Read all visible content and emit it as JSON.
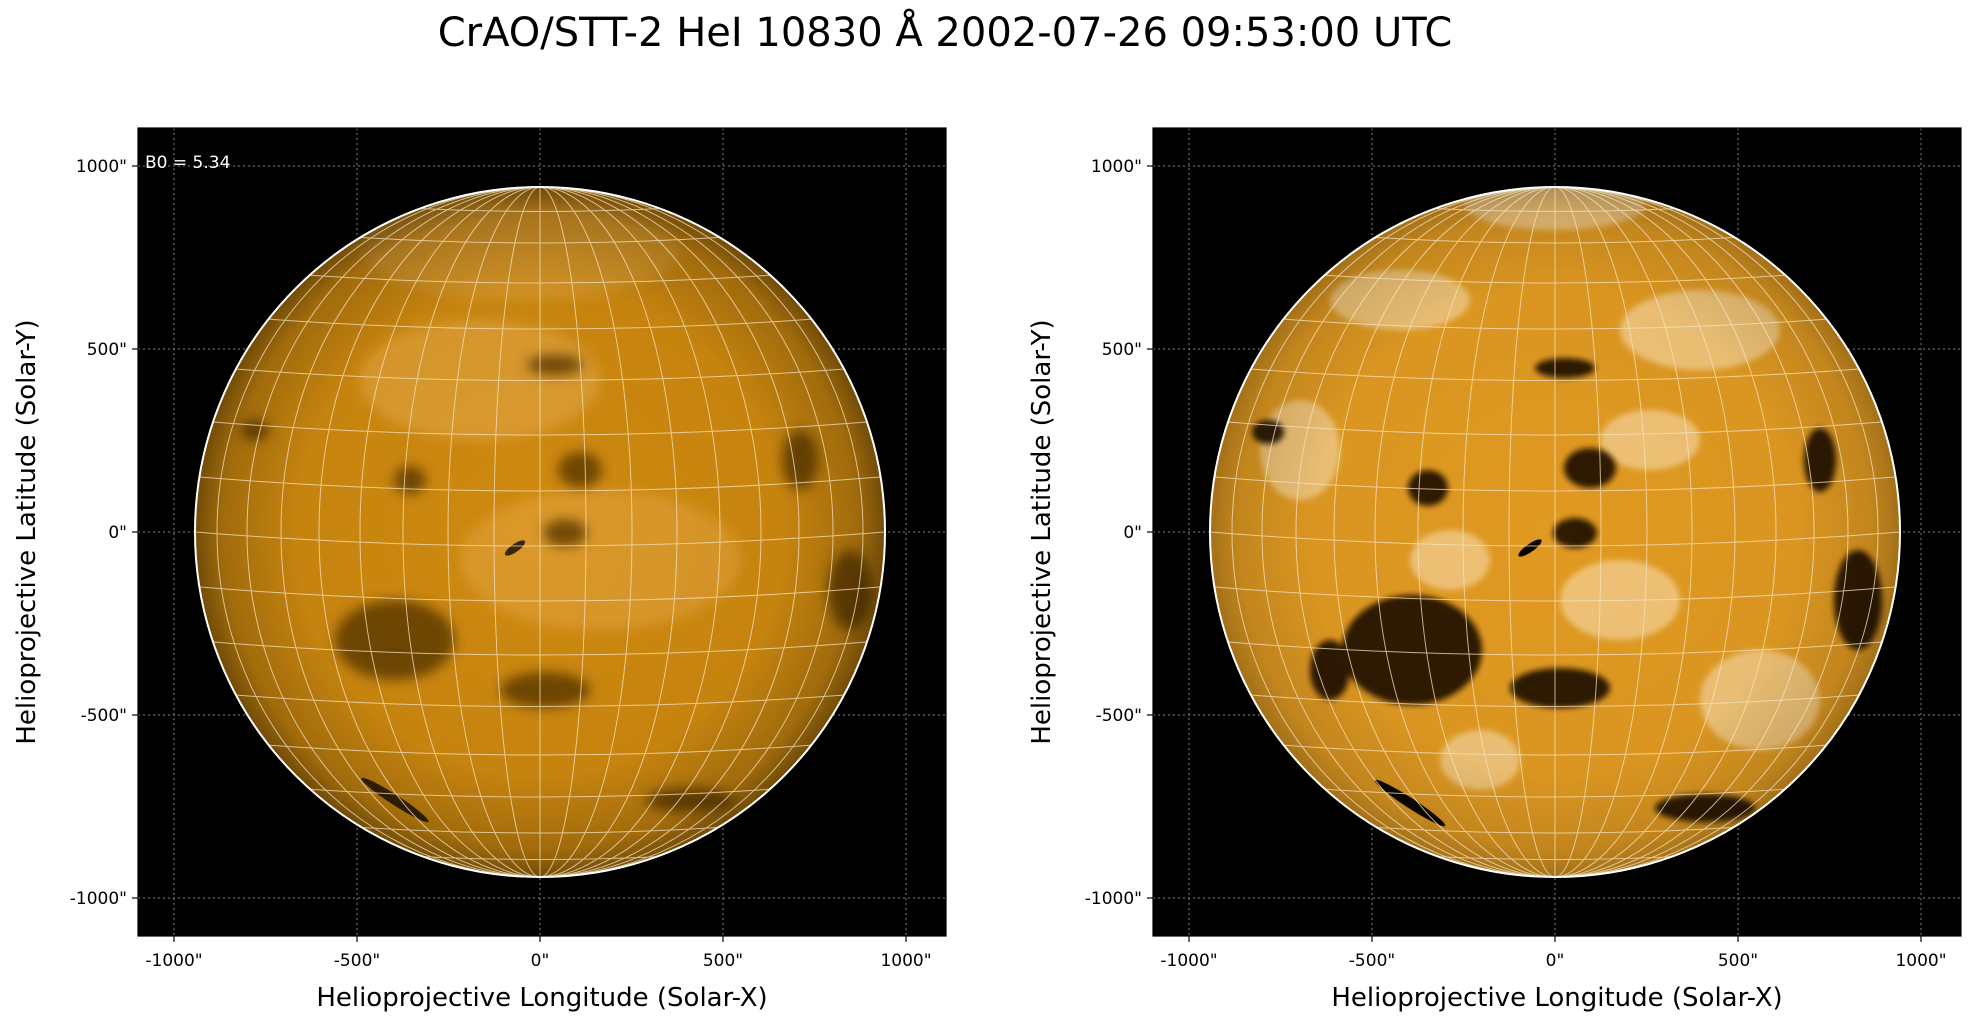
{
  "figure": {
    "title": "CrAO/STT-2 HeI 10830 Å 2002-07-26 09:53:00 UTC",
    "annotation": "B0 = 5.34",
    "colormap": {
      "background": "#000000",
      "disk_base": "#d28b0c",
      "disk_light": "#f1b85a",
      "disk_dark": "#3a2404"
    },
    "panels": [
      {
        "id": "left",
        "style": "smooth",
        "xlabel": "Helioprojective Longitude (Solar-X)",
        "ylabel": "Helioprojective Latitude (Solar-Y)",
        "xticks": [
          "-1000\"",
          "-500\"",
          "0\"",
          "500\"",
          "1000\""
        ],
        "yticks": [
          "1000\"",
          "500\"",
          "0\"",
          "-500\"",
          "-1000\""
        ],
        "xlim": [
          -1100,
          1100
        ],
        "ylim": [
          -1100,
          1100
        ],
        "solar_radius_arcsec": 945,
        "grid": true
      },
      {
        "id": "right",
        "style": "contrast",
        "xlabel": "Helioprojective Longitude (Solar-X)",
        "ylabel": "Helioprojective Latitude (Solar-Y)",
        "xticks": [
          "-1000\"",
          "-500\"",
          "0\"",
          "500\"",
          "1000\""
        ],
        "yticks": [
          "1000\"",
          "500\"",
          "0\"",
          "-500\"",
          "-1000\""
        ],
        "xlim": [
          -1100,
          1100
        ],
        "ylim": [
          -1100,
          1100
        ],
        "solar_radius_arcsec": 945,
        "grid": true
      }
    ]
  }
}
